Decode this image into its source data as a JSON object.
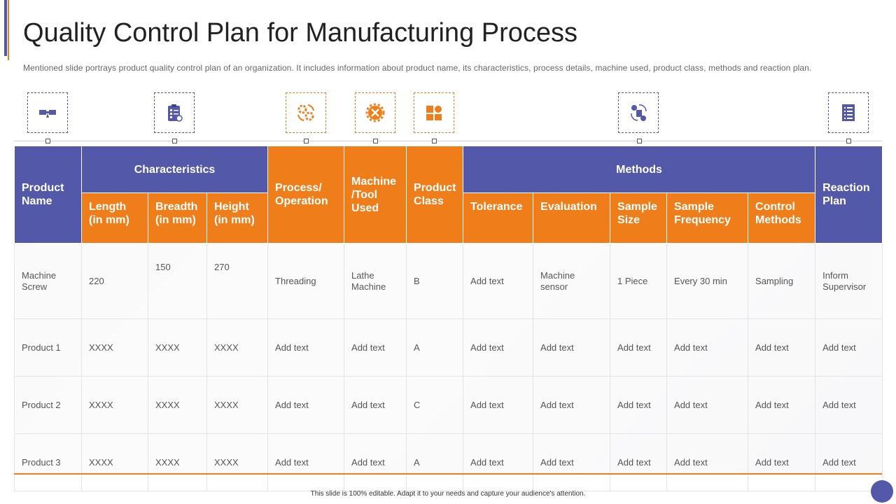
{
  "title": "Quality Control Plan for Manufacturing Process",
  "subtitle": "Mentioned slide portrays product quality control plan of an organization. It includes information about product name, its characteristics, process details, machine used, product class, methods and reaction plan.",
  "colors": {
    "purple": "#5358a8",
    "orange": "#ef7d1a"
  },
  "icons": [
    "ruler-icon",
    "checklist-icon",
    "gears-cycle-icon",
    "gear-tools-icon",
    "blocks-icon",
    "idea-money-icon",
    "document-list-icon"
  ],
  "table": {
    "header": {
      "product_name": "Product Name",
      "characteristics": "Characteristics",
      "process_operation": "Process/ Operation",
      "machine_tool": "Machine /Tool Used",
      "product_class": "Product Class",
      "methods": "Methods",
      "reaction_plan": "Reaction Plan",
      "length": "Length (in mm)",
      "breadth": "Breadth (in mm)",
      "height": "Height (in mm)",
      "tolerance": "Tolerance",
      "evaluation": "Evaluation",
      "sample_size": "Sample Size",
      "sample_frequency": "Sample Frequency",
      "control_methods": "Control Methods"
    },
    "rows": [
      [
        "Machine Screw",
        "220",
        "150",
        "270",
        "Threading",
        "Lathe Machine",
        "B",
        "Add text",
        "Machine sensor",
        "1 Piece",
        "Every 30 min",
        "Sampling",
        "Inform Supervisor"
      ],
      [
        "Product 1",
        "XXXX",
        "XXXX",
        "XXXX",
        "Add text",
        "Add text",
        "A",
        "Add text",
        "Add text",
        "Add text",
        "Add text",
        "Add text",
        "Add text"
      ],
      [
        "Product 2",
        "XXXX",
        "XXXX",
        "XXXX",
        "Add text",
        "Add text",
        "C",
        "Add text",
        "Add text",
        "Add text",
        "Add text",
        "Add text",
        "Add text"
      ],
      [
        "Product 3",
        "XXXX",
        "XXXX",
        "XXXX",
        "Add text",
        "Add text",
        "A",
        "Add text",
        "Add text",
        "Add text",
        "Add text",
        "Add text",
        "Add text"
      ]
    ]
  },
  "footer": "This slide is 100% editable. Adapt it to your needs and capture your audience's attention."
}
